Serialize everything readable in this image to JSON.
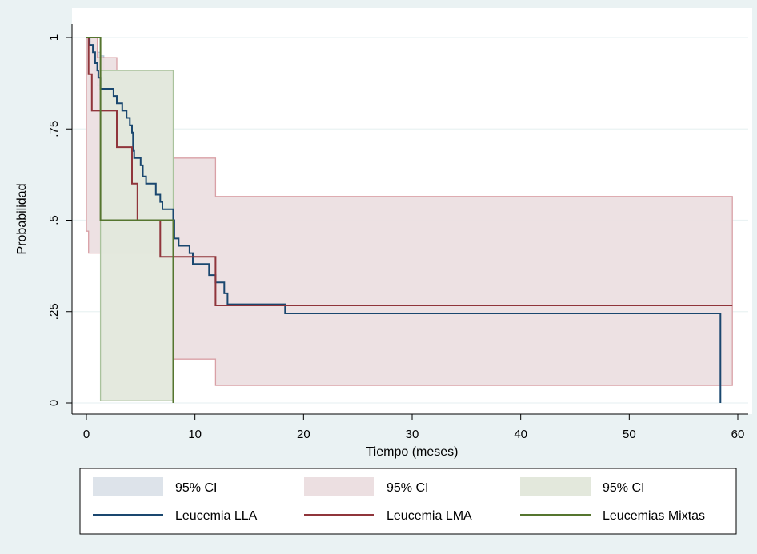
{
  "chart_data": {
    "type": "line",
    "xlabel": "Tiempo (meses)",
    "ylabel": "Probabilidad",
    "xlim": [
      0,
      60
    ],
    "ylim": [
      0,
      1
    ],
    "x_ticks": [
      0,
      10,
      20,
      30,
      40,
      50,
      60
    ],
    "x_tick_labels": [
      "0",
      "10",
      "20",
      "30",
      "40",
      "50",
      "60"
    ],
    "y_ticks": [
      0,
      0.25,
      0.5,
      0.75,
      1
    ],
    "y_tick_labels": [
      "0",
      ".25",
      ".5",
      ".75",
      "1"
    ],
    "grid": "horizontal",
    "legend_position": "bottom",
    "series": [
      {
        "name": "Leucemia LLA",
        "color": "#1a476f",
        "steps": [
          [
            0,
            1
          ],
          [
            0.3,
            0.98
          ],
          [
            0.6,
            0.96
          ],
          [
            0.8,
            0.93
          ],
          [
            1.0,
            0.91
          ],
          [
            1.1,
            0.89
          ],
          [
            1.3,
            0.86
          ],
          [
            2.5,
            0.84
          ],
          [
            2.8,
            0.82
          ],
          [
            3.3,
            0.8
          ],
          [
            3.7,
            0.78
          ],
          [
            4.0,
            0.76
          ],
          [
            4.2,
            0.74
          ],
          [
            4.3,
            0.69
          ],
          [
            4.4,
            0.67
          ],
          [
            5.0,
            0.65
          ],
          [
            5.2,
            0.62
          ],
          [
            5.5,
            0.6
          ],
          [
            6.4,
            0.57
          ],
          [
            6.8,
            0.55
          ],
          [
            7.0,
            0.53
          ],
          [
            8.0,
            0.5
          ],
          [
            8.1,
            0.45
          ],
          [
            8.5,
            0.43
          ],
          [
            9.5,
            0.41
          ],
          [
            9.8,
            0.38
          ],
          [
            11.3,
            0.35
          ],
          [
            11.9,
            0.33
          ],
          [
            12.7,
            0.3
          ],
          [
            13.0,
            0.27
          ],
          [
            18.3,
            0.245
          ],
          [
            58.4,
            0
          ]
        ],
        "end_x": 58.4
      },
      {
        "name": "Leucemia LMA",
        "color": "#90353b",
        "steps": [
          [
            0,
            1
          ],
          [
            0.2,
            0.9
          ],
          [
            0.5,
            0.8
          ],
          [
            2.8,
            0.7
          ],
          [
            4.2,
            0.6
          ],
          [
            4.7,
            0.5
          ],
          [
            6.8,
            0.4
          ],
          [
            11.9,
            0.267
          ]
        ],
        "end_x": 59.5
      },
      {
        "name": "Leucemias Mixtas",
        "color": "#55752f",
        "steps": [
          [
            0,
            1
          ],
          [
            1.3,
            0.5
          ],
          [
            8.0,
            0
          ]
        ],
        "end_x": 8.0
      }
    ],
    "confidence_bands": [
      {
        "name": "95% CI",
        "series": "Leucemia LLA",
        "fill": "#dde3ea",
        "stroke": "#b3c3d6",
        "steps": [
          [
            0,
            1,
            1
          ],
          [
            0.3,
            0.99,
            0.96
          ],
          [
            0.6,
            0.98,
            0.93
          ],
          [
            0.8,
            0.97,
            0.9
          ],
          [
            1.0,
            0.96,
            0.87
          ],
          [
            1.3,
            0.95,
            0.84
          ]
        ],
        "end_x": 1.6
      },
      {
        "name": "95% CI",
        "series": "Leucemia LMA",
        "fill": "#ecdfe1",
        "stroke": "#d9a0a6",
        "steps": [
          [
            0,
            1,
            0.47
          ],
          [
            0.2,
            1,
            0.41
          ],
          [
            1.0,
            0.945,
            0.41
          ],
          [
            2.8,
            0.91,
            0.41
          ],
          [
            8.0,
            0.67,
            0.12
          ],
          [
            11.9,
            0.565,
            0.048
          ]
        ],
        "end_x": 59.5
      },
      {
        "name": "95% CI",
        "series": "Leucemias Mixtas",
        "fill": "#e3e8dc",
        "stroke": "#a9c29c",
        "steps": [
          [
            1.3,
            0.91,
            0.006
          ]
        ],
        "end_x": 8.0
      }
    ],
    "legend": [
      {
        "label": "95% CI",
        "kind": "band",
        "color": "#dde3ea"
      },
      {
        "label": "95% CI",
        "kind": "band",
        "color": "#ecdfe1"
      },
      {
        "label": "95% CI",
        "kind": "band",
        "color": "#e3e8dc"
      },
      {
        "label": "Leucemia LLA",
        "kind": "line",
        "color": "#1a476f"
      },
      {
        "label": "Leucemia LMA",
        "kind": "line",
        "color": "#90353b"
      },
      {
        "label": "Leucemias Mixtas",
        "kind": "line",
        "color": "#55752f"
      }
    ]
  }
}
